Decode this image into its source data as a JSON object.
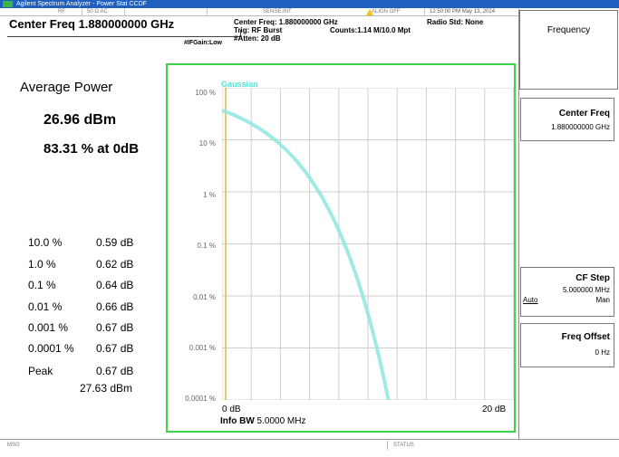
{
  "window": {
    "title": "Agilent Spectrum Analyzer - Power Stat CCDF"
  },
  "status_strip": {
    "items": [
      "RF",
      "50 Ω  AC",
      "SENSE:INT",
      "ALIGN OFF"
    ]
  },
  "header": {
    "center_freq": "Center Freq 1.880000000 GHz",
    "if_gain": "#IFGain:Low",
    "meas_center_freq": "Center Freq: 1.880000000 GHz",
    "trig": "Trig: RF Burst",
    "atten": "#Atten: 20 dB",
    "counts": "Counts:1.14 M/10.0 Mpt",
    "radio_std": "Radio Std: None",
    "datetime": "12:50:00 PM May 13, 2024"
  },
  "results": {
    "avg_power_title": "Average Power",
    "avg_power_dbm": "26.96 dBm",
    "avg_power_pct": "83.31 % at 0dB",
    "stats": [
      {
        "pct": "10.0 %",
        "db": "0.59 dB"
      },
      {
        "pct": "1.0 %",
        "db": "0.62 dB"
      },
      {
        "pct": "0.1 %",
        "db": "0.64 dB"
      },
      {
        "pct": "0.01 %",
        "db": "0.66 dB"
      },
      {
        "pct": "0.001 %",
        "db": "0.67 dB"
      },
      {
        "pct": "0.0001 %",
        "db": "0.67 dB"
      },
      {
        "pct": "Peak",
        "db": "0.67 dB"
      }
    ],
    "peak_dbm": "27.63 dBm"
  },
  "graph": {
    "curve_label": "Gaussian",
    "y_labels": [
      "100 %",
      "10 %",
      "1 %",
      "0.1 %",
      "0.01 %",
      "0.001 %",
      "0.0001 %"
    ],
    "x_start": "0 dB",
    "x_end": "20 dB",
    "info_bw_label": "Info BW",
    "info_bw_value": "5.0000 MHz",
    "grid_color": "#cfcfcf",
    "gaussian_color": "#8fe6df",
    "frame_color": "#3dd34a"
  },
  "softkeys": {
    "menu_title": "Frequency",
    "center_freq": {
      "title": "Center Freq",
      "value": "1.880000000 GHz"
    },
    "cf_step": {
      "title": "CF Step",
      "value": "5.000000 MHz",
      "auto": "Auto",
      "man": "Man"
    },
    "freq_offset": {
      "title": "Freq Offset",
      "value": "0 Hz"
    }
  },
  "bottom": {
    "msg": "MSG",
    "status": "STATUS"
  }
}
